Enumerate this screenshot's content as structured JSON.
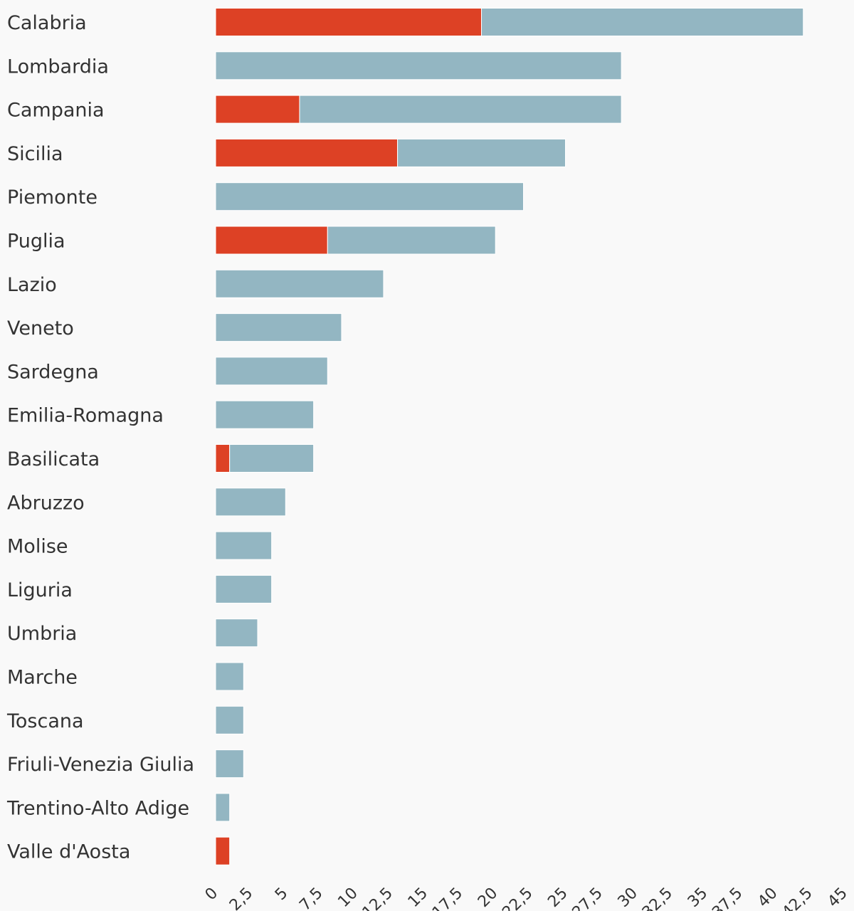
{
  "chart_data": {
    "type": "bar",
    "orientation": "horizontal",
    "stacked": true,
    "categories": [
      "Calabria",
      "Lombardia",
      "Campania",
      "Sicilia",
      "Piemonte",
      "Puglia",
      "Lazio",
      "Veneto",
      "Sardegna",
      "Emilia-Romagna",
      "Basilicata",
      "Abruzzo",
      "Molise",
      "Liguria",
      "Umbria",
      "Marche",
      "Toscana",
      "Friuli-Venezia Giulia",
      "Trentino-Alto Adige",
      "Valle d'Aosta"
    ],
    "series": [
      {
        "color": "#dd4125",
        "values": [
          19,
          0,
          6,
          13,
          0,
          8,
          0,
          0,
          0,
          0,
          1,
          0,
          0,
          0,
          0,
          0,
          0,
          0,
          0,
          1
        ]
      },
      {
        "color": "#93b6c2",
        "values": [
          23,
          29,
          23,
          12,
          22,
          12,
          12,
          9,
          8,
          7,
          6,
          5,
          4,
          4,
          3,
          2,
          2,
          2,
          1,
          0
        ]
      }
    ],
    "x_ticks": [
      "0",
      "2,5",
      "5",
      "7,5",
      "10",
      "12,5",
      "15",
      "17,5",
      "20",
      "22,5",
      "25",
      "27,5",
      "30",
      "32,5",
      "35",
      "37,5",
      "40",
      "42,5",
      "45"
    ],
    "xlim": [
      0,
      45
    ],
    "grid": false,
    "legend": false,
    "title": "",
    "xlabel": "",
    "ylabel": ""
  }
}
